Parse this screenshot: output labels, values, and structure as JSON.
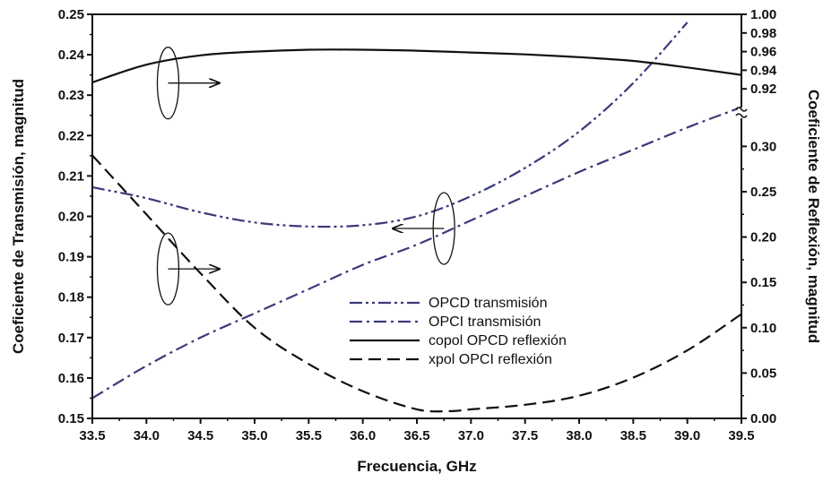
{
  "chart_data": {
    "type": "line",
    "xlabel": "Frecuencia, GHz",
    "ylabel_left": "Coeficiente de Transmisión, magnitud",
    "ylabel_right": "Coeficiente de Reflexión, magnitud",
    "xlim": [
      33.5,
      39.5
    ],
    "x_ticks": [
      "33.5",
      "34.0",
      "34.5",
      "35.0",
      "35.5",
      "36.0",
      "36.5",
      "37.0",
      "37.5",
      "38.0",
      "38.5",
      "39.0",
      "39.5"
    ],
    "ylim_left": [
      0.15,
      0.25
    ],
    "y_ticks_left": [
      "0.15",
      "0.16",
      "0.17",
      "0.18",
      "0.19",
      "0.20",
      "0.21",
      "0.22",
      "0.23",
      "0.24",
      "0.25"
    ],
    "right_axis_upper": {
      "range": [
        0.9,
        1.0
      ],
      "ticks": [
        "0.92",
        "0.94",
        "0.96",
        "0.98",
        "1.00"
      ]
    },
    "right_axis_lower": {
      "range": [
        0.0,
        0.33
      ],
      "ticks": [
        "0.00",
        "0.05",
        "0.10",
        "0.15",
        "0.20",
        "0.25",
        "0.30"
      ]
    },
    "grid": false,
    "legend_position": "center-right",
    "series": [
      {
        "name": "OPCD transmisión",
        "axis": "left",
        "style": "dash-dot-dot",
        "color": "#3a3a7a",
        "x": [
          33.5,
          34.0,
          34.5,
          35.0,
          35.5,
          36.0,
          36.5,
          37.0,
          37.5,
          38.0,
          38.5,
          39.0
        ],
        "y": [
          0.2072,
          0.2045,
          0.201,
          0.1985,
          0.1975,
          0.1978,
          0.2,
          0.205,
          0.212,
          0.221,
          0.233,
          0.248
        ]
      },
      {
        "name": "OPCI transmisión",
        "axis": "left",
        "style": "dash-dot",
        "color": "#3a3a7a",
        "x": [
          33.5,
          34.0,
          34.5,
          35.0,
          35.5,
          36.0,
          36.5,
          37.0,
          37.5,
          38.0,
          38.5,
          39.0,
          39.5
        ],
        "y": [
          0.155,
          0.163,
          0.17,
          0.176,
          0.182,
          0.188,
          0.193,
          0.199,
          0.205,
          0.211,
          0.2165,
          0.222,
          0.227
        ]
      },
      {
        "name": "copol OPCD reflexión",
        "axis": "right_upper",
        "style": "solid",
        "color": "#111111",
        "x": [
          33.5,
          34.0,
          34.5,
          35.0,
          35.5,
          36.0,
          36.5,
          37.0,
          37.5,
          38.0,
          38.5,
          39.0,
          39.5
        ],
        "y": [
          0.927,
          0.946,
          0.956,
          0.96,
          0.962,
          0.962,
          0.961,
          0.959,
          0.957,
          0.954,
          0.95,
          0.943,
          0.935
        ]
      },
      {
        "name": "xpol OPCI reflexión",
        "axis": "right_lower",
        "style": "dashed",
        "color": "#111111",
        "x": [
          33.5,
          34.0,
          34.5,
          35.0,
          35.5,
          36.0,
          36.5,
          36.8,
          37.0,
          37.5,
          38.0,
          38.5,
          39.0,
          39.5
        ],
        "y": [
          0.29,
          0.225,
          0.16,
          0.1,
          0.06,
          0.03,
          0.01,
          0.008,
          0.01,
          0.015,
          0.025,
          0.045,
          0.075,
          0.115
        ]
      }
    ],
    "annotations": [
      {
        "label": "ellipse-arrow-right",
        "target": "copol OPCD reflexión",
        "x": 34.2,
        "y": 0.233
      },
      {
        "label": "ellipse-arrow-right",
        "target": "xpol OPCI reflexión",
        "x": 34.2,
        "y": 0.187
      },
      {
        "label": "ellipse-arrow-left",
        "target": "transmisión",
        "x": 36.75,
        "y": 0.197
      }
    ]
  }
}
